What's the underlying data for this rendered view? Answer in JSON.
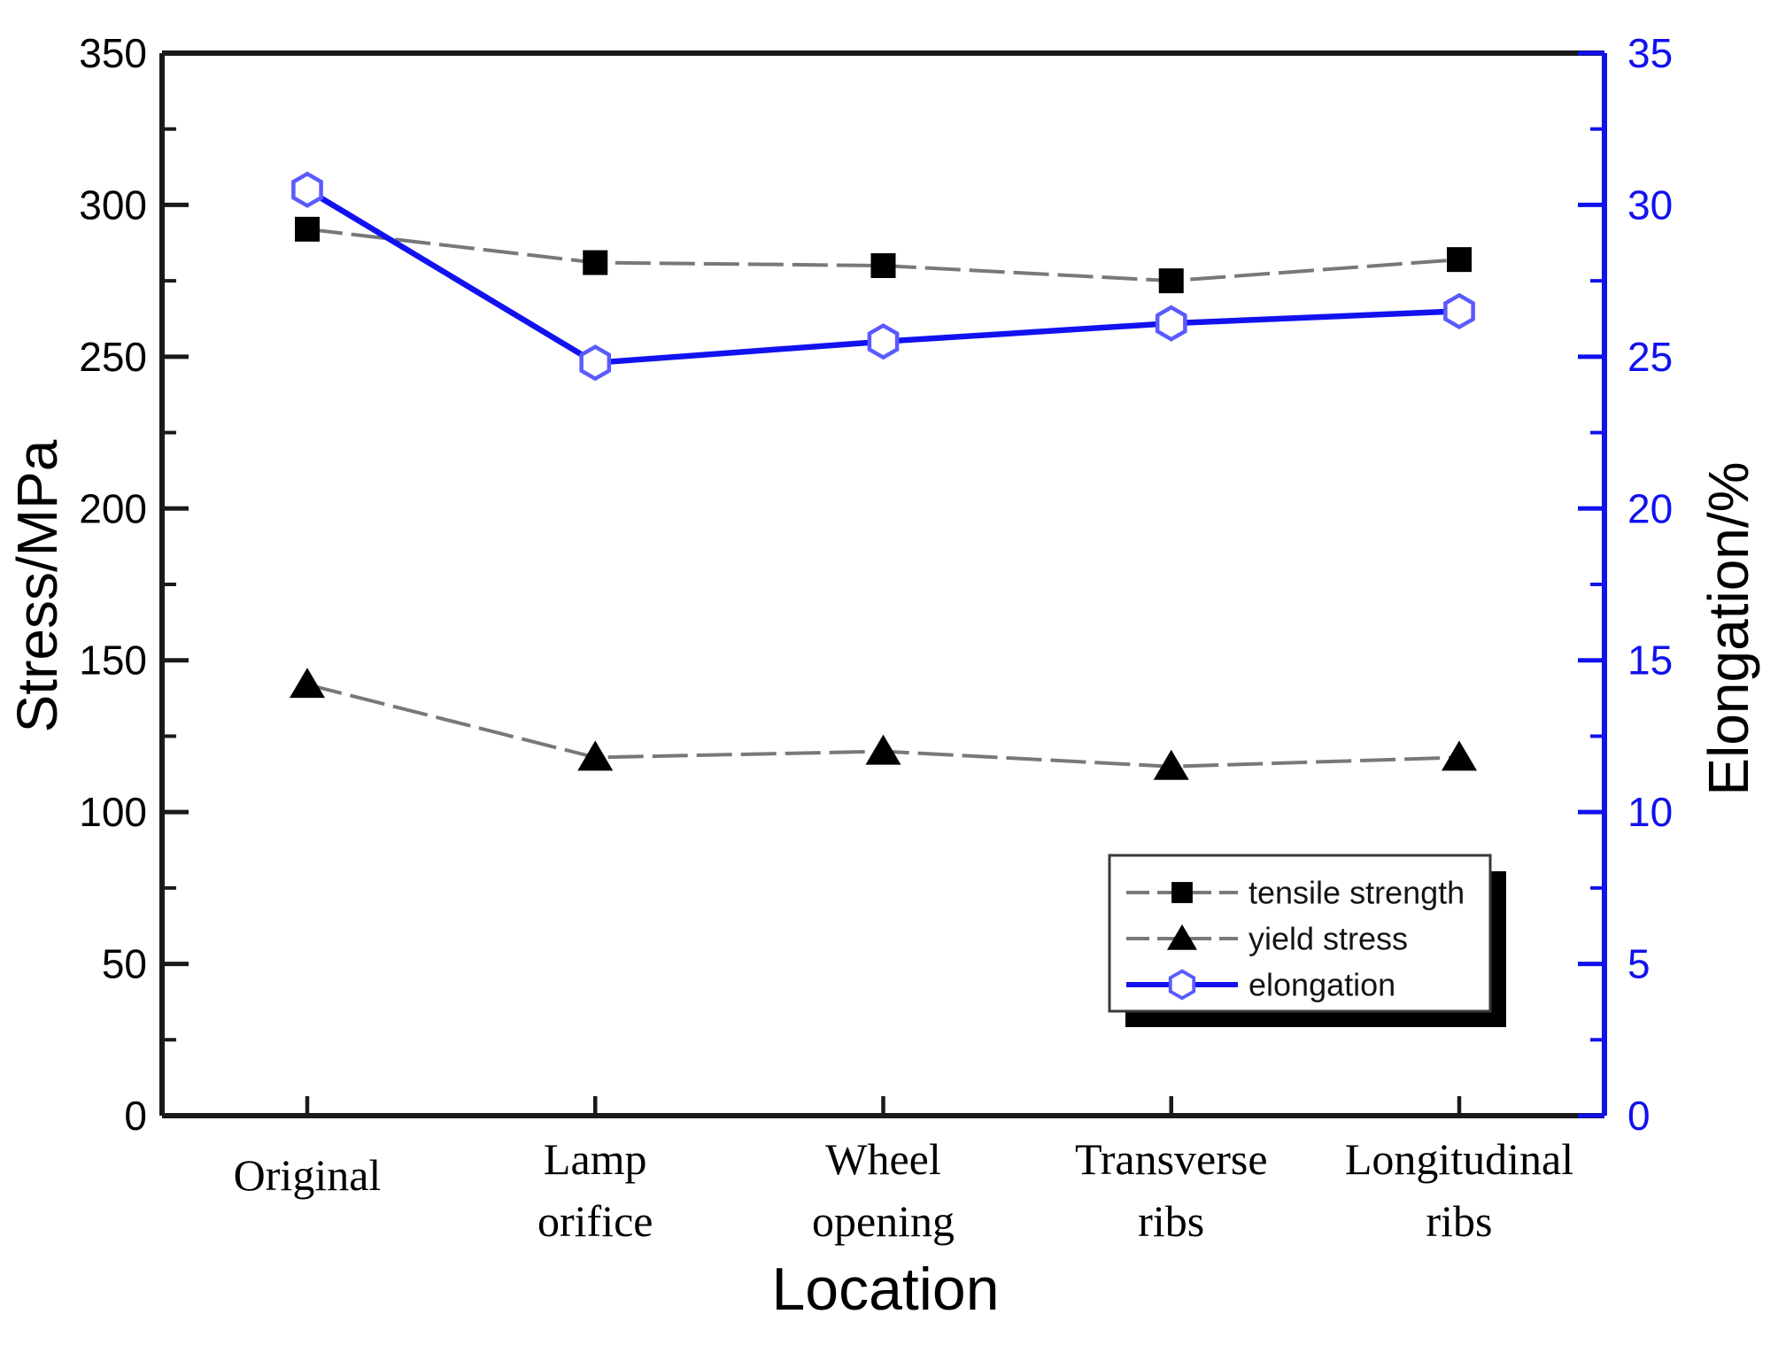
{
  "chart_data": {
    "type": "line",
    "title": "",
    "xlabel": "Location",
    "ylabel_left": "Stress/MPa",
    "ylabel_right": "Elongation/%",
    "categories": [
      "Original",
      "Lamp orifice",
      "Wheel opening",
      "Transverse ribs",
      "Longitudinal ribs"
    ],
    "category_label_lines": [
      [
        "Original"
      ],
      [
        "Lamp",
        "orifice"
      ],
      [
        "Wheel",
        "opening"
      ],
      [
        "Transverse",
        "ribs"
      ],
      [
        "Longitudinal",
        "ribs"
      ]
    ],
    "left_axis": {
      "label": "Stress/MPa",
      "min": 0,
      "max": 350,
      "major_ticks": [
        0,
        50,
        100,
        150,
        200,
        250,
        300,
        350
      ],
      "minor_step": 25,
      "color": "#000000"
    },
    "right_axis": {
      "label": "Elongation/%",
      "min": 0,
      "max": 35,
      "major_ticks": [
        0,
        5,
        10,
        15,
        20,
        25,
        30,
        35
      ],
      "minor_step": 2.5,
      "color": "#1111ee"
    },
    "grid": false,
    "series": [
      {
        "name": "tensile strength",
        "axis": "left",
        "marker": "square",
        "marker_color": "#000000",
        "line_color": "#787878",
        "line_style": "dashed",
        "values": [
          292,
          281,
          280,
          275,
          282
        ]
      },
      {
        "name": "yield stress",
        "axis": "left",
        "marker": "triangle",
        "marker_color": "#000000",
        "line_color": "#787878",
        "line_style": "dashed",
        "values": [
          142,
          118,
          120,
          115,
          118
        ]
      },
      {
        "name": "elongation",
        "axis": "right",
        "marker": "hexagon",
        "marker_color": "#5a5aff",
        "line_color": "#1212f0",
        "line_style": "solid",
        "values": [
          30.5,
          24.8,
          25.5,
          26.1,
          26.5
        ]
      }
    ],
    "legend": {
      "position": "lower-right",
      "entries": [
        "tensile strength",
        "yield stress",
        "elongation"
      ]
    }
  }
}
